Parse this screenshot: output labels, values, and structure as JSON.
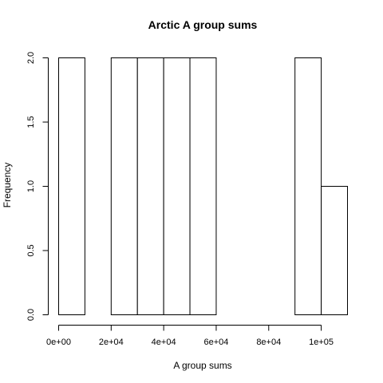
{
  "chart_data": {
    "type": "bar",
    "title": "Arctic A group sums",
    "xlabel": "A group sums",
    "ylabel": "Frequency",
    "bin_edges": [
      0,
      10000,
      20000,
      30000,
      40000,
      50000,
      60000,
      70000,
      80000,
      90000,
      100000,
      110000
    ],
    "values": [
      2,
      0,
      2,
      2,
      2,
      2,
      0,
      0,
      0,
      2,
      1
    ],
    "xlim": [
      0,
      110000
    ],
    "ylim": [
      0,
      2
    ],
    "x_ticks": [
      0,
      20000,
      40000,
      60000,
      80000,
      100000
    ],
    "x_tick_labels": [
      "0e+00",
      "2e+04",
      "4e+04",
      "6e+04",
      "8e+04",
      "1e+05"
    ],
    "y_ticks": [
      0,
      0.5,
      1,
      1.5,
      2
    ],
    "y_tick_labels": [
      "0.0",
      "0.5",
      "1.0",
      "1.5",
      "2.0"
    ],
    "grid": false,
    "bar_fill": "#ffffff",
    "bar_stroke": "#000000"
  }
}
